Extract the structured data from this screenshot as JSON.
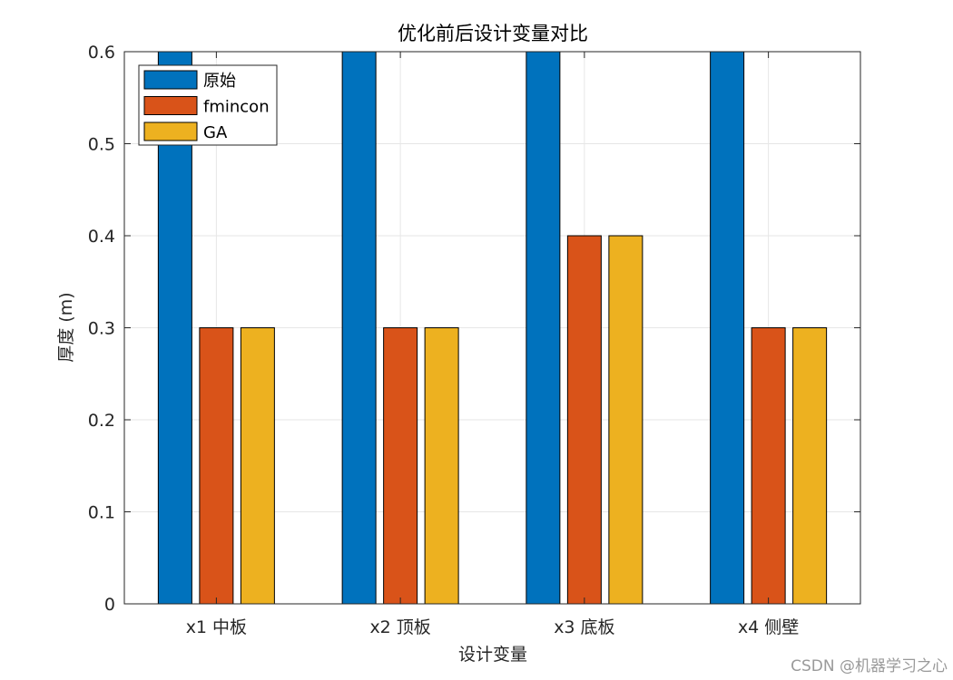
{
  "chart_data": {
    "type": "bar",
    "title": "优化前后设计变量对比",
    "xlabel": "设计变量",
    "ylabel": "厚度 (m)",
    "categories": [
      "x1 中板",
      "x2 顶板",
      "x3 底板",
      "x4 侧壁"
    ],
    "series": [
      {
        "name": "原始",
        "values": [
          0.6,
          0.6,
          0.6,
          0.6
        ],
        "color": "#0072BD"
      },
      {
        "name": "fmincon",
        "values": [
          0.3,
          0.3,
          0.4,
          0.3
        ],
        "color": "#D95319"
      },
      {
        "name": "GA",
        "values": [
          0.3,
          0.3,
          0.4,
          0.3
        ],
        "color": "#EDB120"
      }
    ],
    "ylim": [
      0,
      0.6
    ],
    "yticks": [
      "0",
      "0.1",
      "0.2",
      "0.3",
      "0.4",
      "0.5",
      "0.6"
    ],
    "grid": true,
    "legend_position": "top-left"
  },
  "watermark": "CSDN @机器学习之心"
}
